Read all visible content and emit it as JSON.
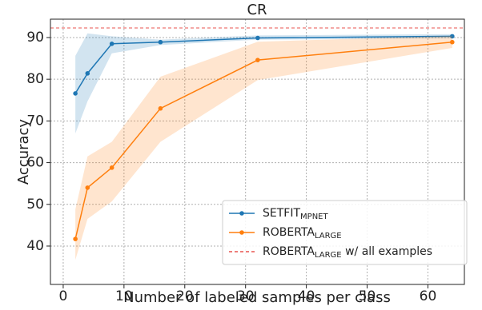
{
  "chart_data": {
    "type": "line",
    "title": "CR",
    "x_label": "Number of labeled samples per class",
    "y_label": "Accuracy",
    "xlim": [
      -2.1,
      66
    ],
    "ylim": [
      30.8,
      94.4
    ],
    "xticks": [
      0,
      10,
      20,
      30,
      40,
      50,
      60
    ],
    "yticks": [
      40,
      50,
      60,
      70,
      80,
      90
    ],
    "grid": true,
    "legend": "lower right",
    "x": [
      2,
      4,
      8,
      16,
      32,
      64
    ],
    "series": [
      {
        "name": "SETFIT",
        "name_sub": "MPNET",
        "color": "#1f77b4",
        "values": [
          76.6,
          81.4,
          88.5,
          88.9,
          89.9,
          90.3
        ],
        "lower": [
          67,
          74.7,
          86.2,
          88.2,
          89.5,
          89.8
        ],
        "upper": [
          85.6,
          91,
          90.3,
          89.5,
          90.5,
          90.8
        ]
      },
      {
        "name": "ROBERTA",
        "name_sub": "LARGE",
        "color": "#ff7f0e",
        "values": [
          41.7,
          54,
          58.8,
          73,
          84.6,
          88.9
        ],
        "lower": [
          36.7,
          46.5,
          50.7,
          65,
          79.8,
          87.5
        ],
        "upper": [
          48.8,
          61.5,
          65,
          80.6,
          89,
          90.4
        ]
      }
    ],
    "reference": {
      "name": "ROBERTA",
      "name_sub": "LARGE",
      "name_suffix": " w/ all examples",
      "value": 92.3,
      "color": "#e8534f"
    }
  }
}
